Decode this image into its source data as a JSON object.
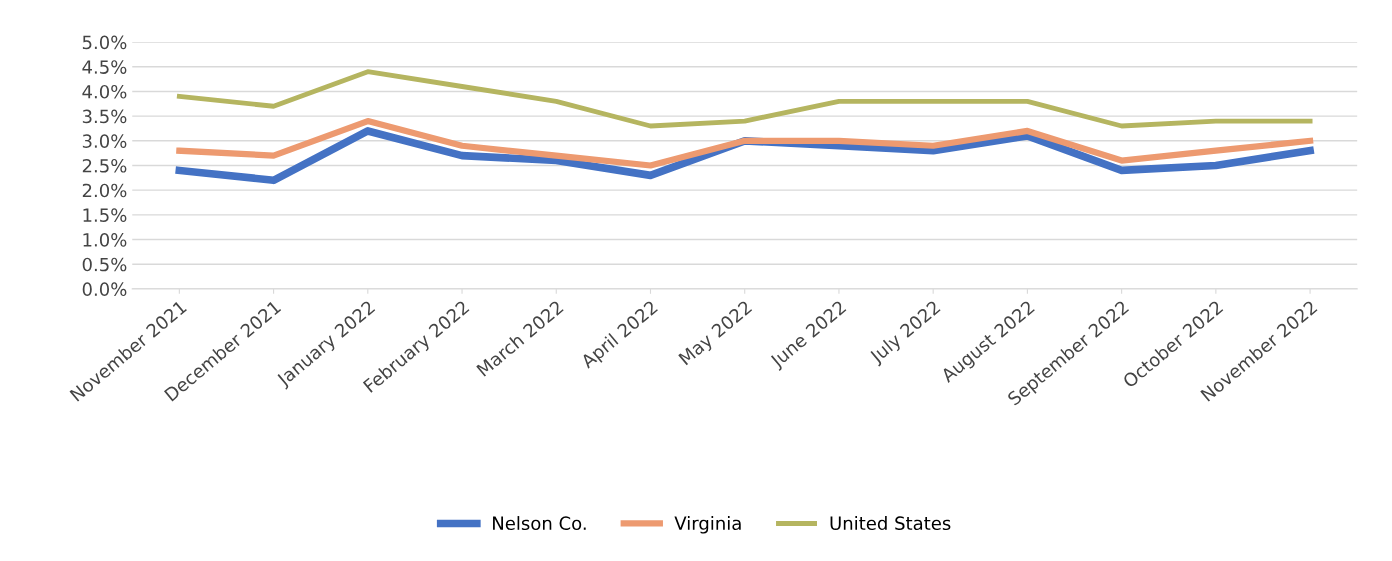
{
  "chart_data": {
    "type": "line",
    "categories": [
      "November 2021",
      "December 2021",
      "January 2022",
      "February 2022",
      "March 2022",
      "April 2022",
      "May 2022",
      "June 2022",
      "July 2022",
      "August 2022",
      "September 2022",
      "October 2022",
      "November 2022"
    ],
    "series": [
      {
        "name": "Nelson Co.",
        "color": "#4472c4",
        "values": [
          2.4,
          2.2,
          3.2,
          2.7,
          2.6,
          2.3,
          3.0,
          2.9,
          2.8,
          3.1,
          2.4,
          2.5,
          2.8
        ]
      },
      {
        "name": "Virginia",
        "color": "#ed9a70",
        "values": [
          2.8,
          2.7,
          3.4,
          2.9,
          2.7,
          2.5,
          3.0,
          3.0,
          2.9,
          3.2,
          2.6,
          2.8,
          3.0
        ]
      },
      {
        "name": "United States",
        "color": "#b5b560",
        "values": [
          3.9,
          3.7,
          4.4,
          4.1,
          3.8,
          3.3,
          3.4,
          3.8,
          3.8,
          3.8,
          3.3,
          3.4,
          3.4
        ]
      }
    ],
    "ylim": [
      0,
      5
    ],
    "yticks": [
      {
        "value": 0,
        "label": "0.0%"
      },
      {
        "value": 0.5,
        "label": "0.5%"
      },
      {
        "value": 1,
        "label": "1.0%"
      },
      {
        "value": 1.5,
        "label": "1.5%"
      },
      {
        "value": 2,
        "label": "2.0%"
      },
      {
        "value": 2.5,
        "label": "2.5%"
      },
      {
        "value": 3,
        "label": "3.0%"
      },
      {
        "value": 3.5,
        "label": "3.5%"
      },
      {
        "value": 4,
        "label": "4.0%"
      },
      {
        "value": 4.5,
        "label": "4.5%"
      },
      {
        "value": 5,
        "label": "5.0%"
      }
    ],
    "grid": "y",
    "legend": "bottom",
    "marker": "none",
    "line_style": "solid"
  }
}
